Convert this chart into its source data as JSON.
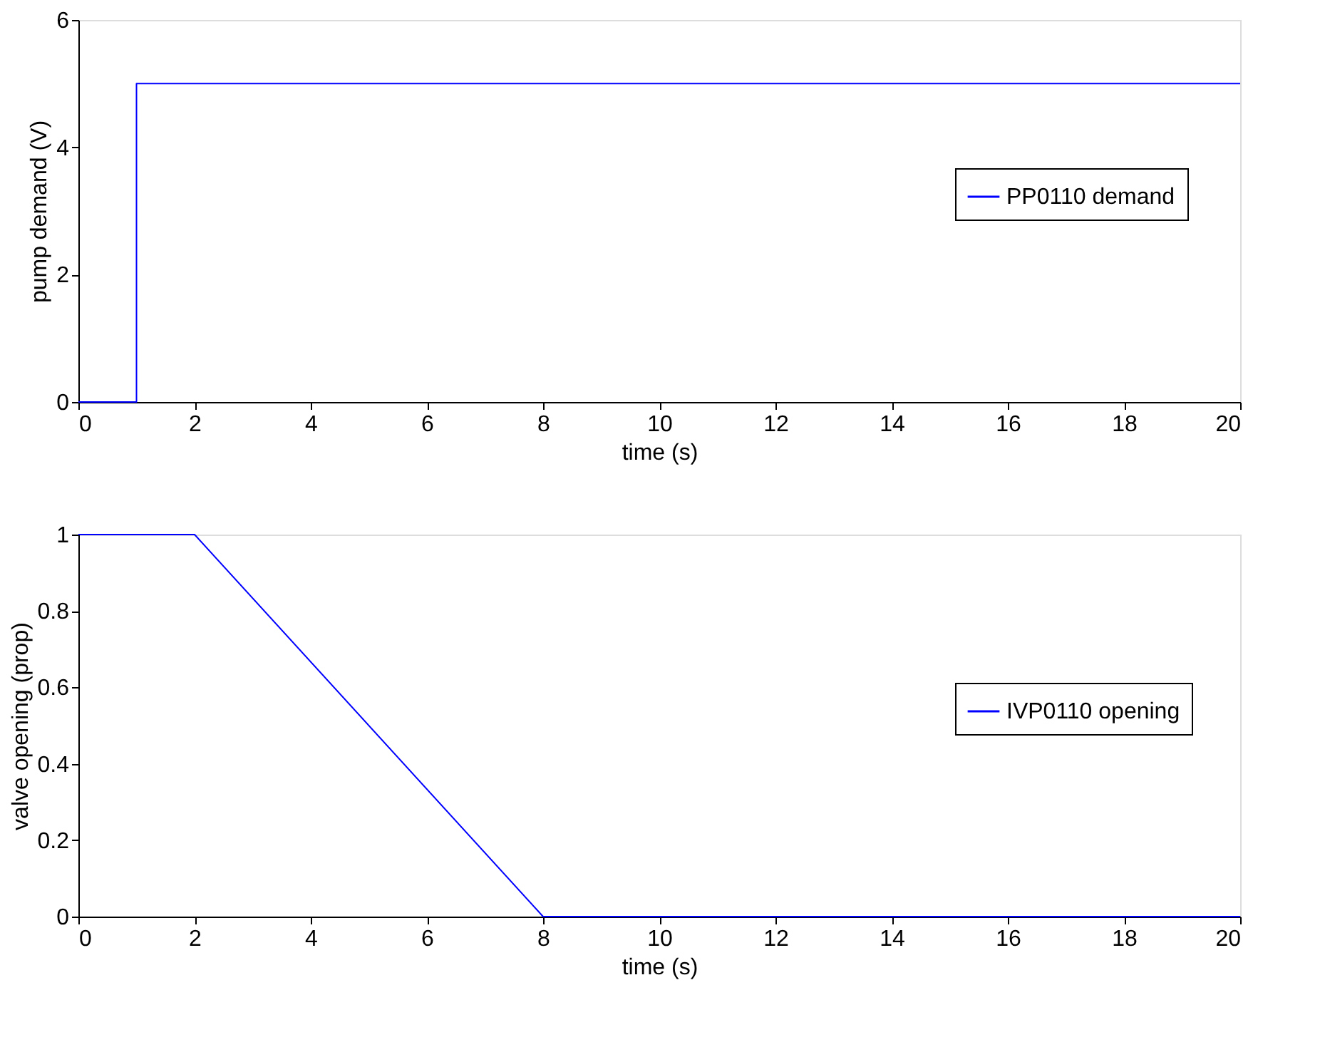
{
  "chart_data": [
    {
      "type": "line",
      "xlabel": "time (s)",
      "ylabel": "pump demand (V)",
      "xlim": [
        0,
        20
      ],
      "xticks": [
        0,
        2,
        4,
        6,
        8,
        10,
        12,
        14,
        16,
        18,
        20
      ],
      "ylim": [
        0,
        6
      ],
      "yticks": [
        0,
        2,
        4,
        6
      ],
      "grid": false,
      "legend": "right",
      "series": [
        {
          "name": "PP0110 demand",
          "color": "#0000ff",
          "x": [
            0,
            1,
            1,
            20
          ],
          "values": [
            0,
            0,
            5,
            5
          ]
        }
      ]
    },
    {
      "type": "line",
      "xlabel": "time (s)",
      "ylabel": "valve opening (prop)",
      "xlim": [
        0,
        20
      ],
      "xticks": [
        0,
        2,
        4,
        6,
        8,
        10,
        12,
        14,
        16,
        18,
        20
      ],
      "ylim": [
        0,
        1
      ],
      "yticks": [
        0,
        0.2,
        0.4,
        0.6,
        0.8,
        1
      ],
      "grid": false,
      "legend": "right",
      "series": [
        {
          "name": "IVP0110 opening",
          "color": "#0000ff",
          "x": [
            0,
            2,
            8,
            20
          ],
          "values": [
            1,
            1,
            0,
            0
          ]
        }
      ]
    }
  ]
}
